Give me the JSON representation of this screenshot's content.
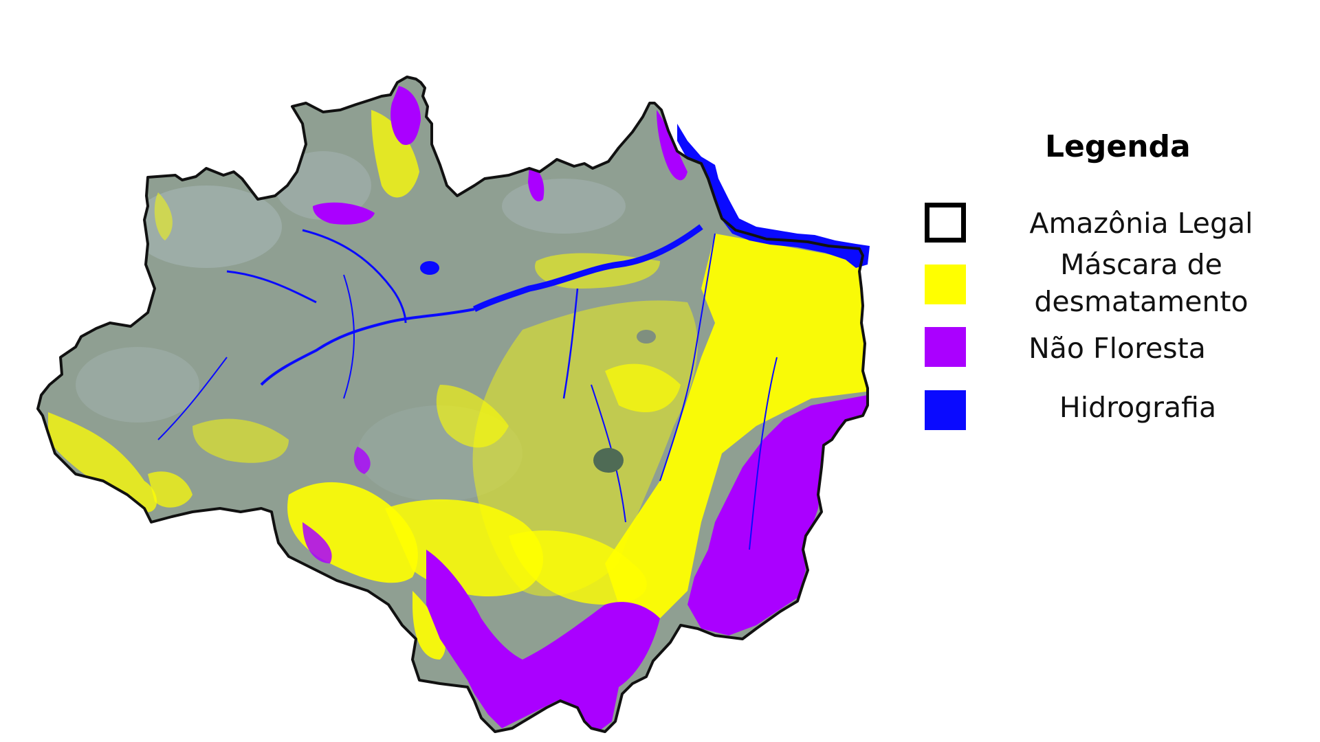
{
  "legend": {
    "title": "Legenda",
    "items": [
      {
        "label": "Amazônia Legal",
        "symbol": "outline",
        "color": "#000000"
      },
      {
        "label_lines": [
          "Máscara de",
          "desmatamento"
        ],
        "symbol": "fill",
        "color": "#ffff00"
      },
      {
        "label": "Não Floresta",
        "symbol": "fill",
        "color": "#aa00ff"
      },
      {
        "label": "Hidrografia",
        "symbol": "fill",
        "color": "#0a0aff"
      }
    ]
  },
  "colors": {
    "forest": "#8f9f92",
    "forest_light": "#a3b3b0",
    "deforestation": "#ffff00",
    "non_forest": "#aa00ff",
    "hydrography": "#0a0aff",
    "boundary": "#111111"
  }
}
